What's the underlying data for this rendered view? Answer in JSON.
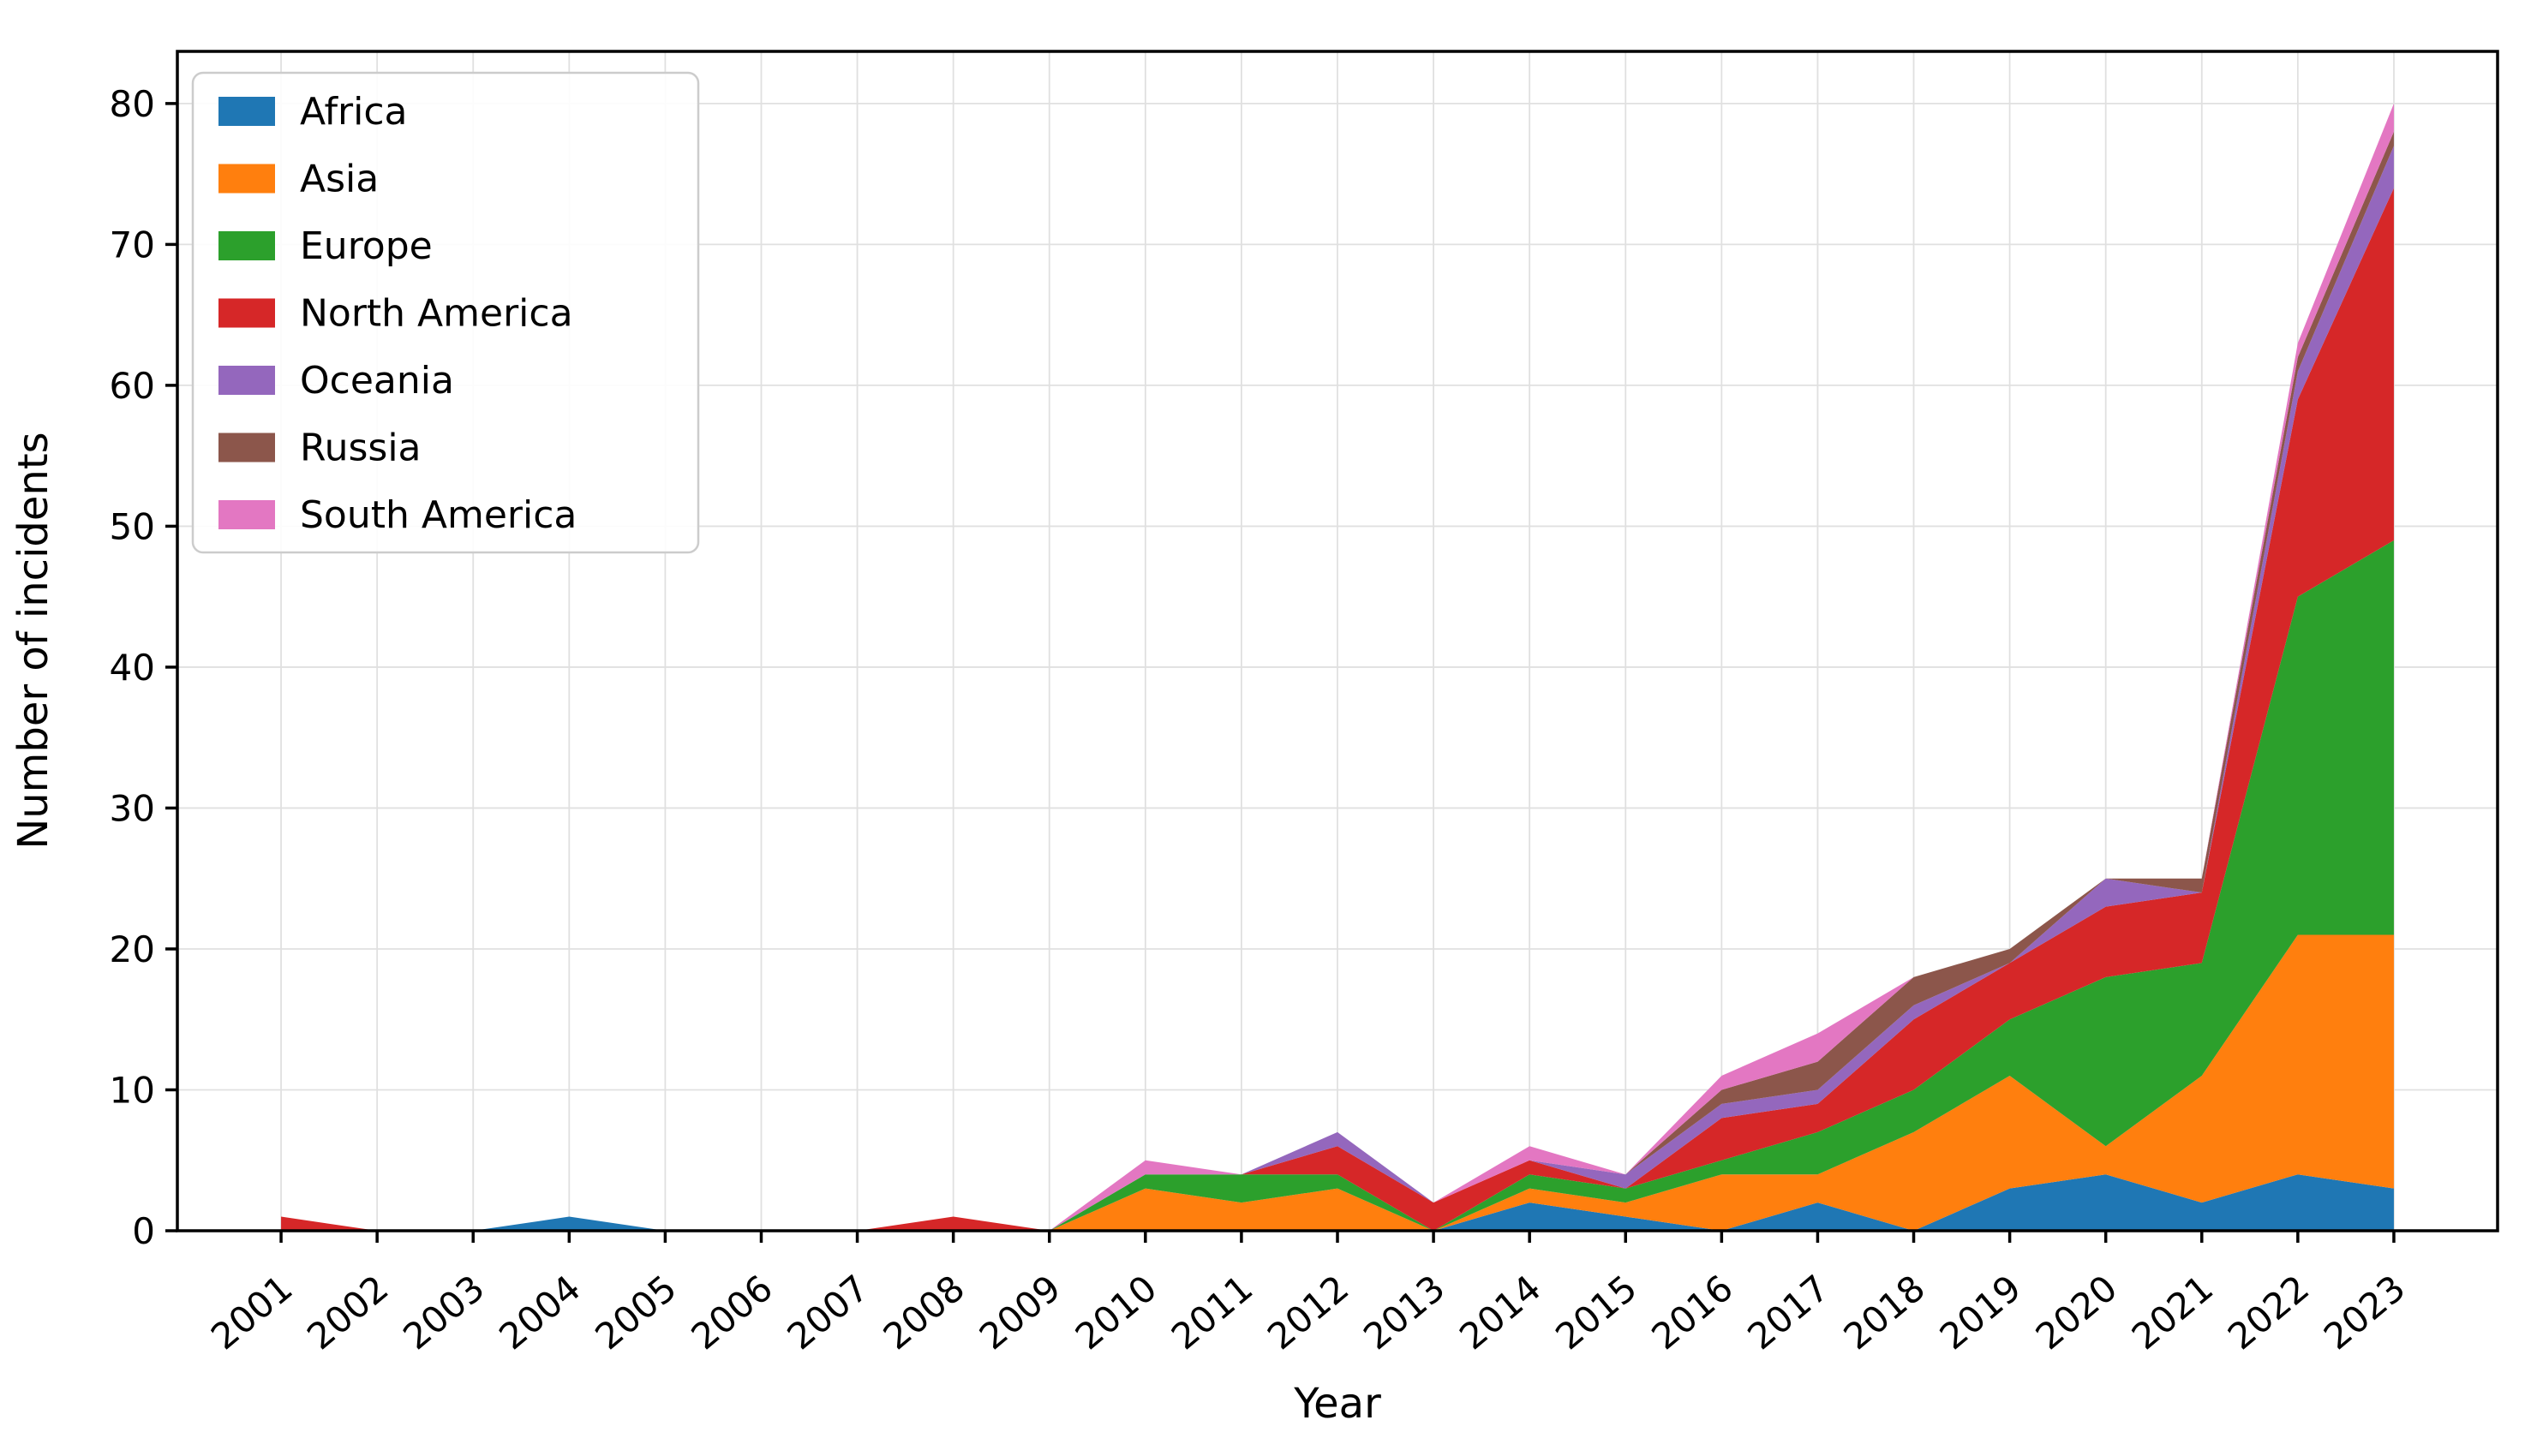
{
  "chart_data": {
    "type": "area",
    "stacked": true,
    "title": "",
    "xlabel": "Year",
    "ylabel": "Number of incidents",
    "x": [
      2001,
      2002,
      2003,
      2004,
      2005,
      2006,
      2007,
      2008,
      2009,
      2010,
      2011,
      2012,
      2013,
      2014,
      2015,
      2016,
      2017,
      2018,
      2019,
      2020,
      2021,
      2022,
      2023
    ],
    "x_tick_labels": [
      "2001",
      "2002",
      "2003",
      "2004",
      "2005",
      "2006",
      "2007",
      "2008",
      "2009",
      "2010",
      "2011",
      "2012",
      "2013",
      "2014",
      "2015",
      "2016",
      "2017",
      "2018",
      "2019",
      "2020",
      "2021",
      "2022",
      "2023"
    ],
    "y_tick_labels": [
      "0",
      "10",
      "20",
      "30",
      "40",
      "50",
      "60",
      "70",
      "80"
    ],
    "y_ticks": [
      0,
      10,
      20,
      30,
      40,
      50,
      60,
      70,
      80
    ],
    "xlim": [
      1999.92,
      2024.08
    ],
    "ylim": [
      0,
      83.7
    ],
    "grid": true,
    "legend_position": "upper left",
    "series": [
      {
        "name": "Africa",
        "color": "#1f77b4",
        "values": [
          0,
          0,
          0,
          1,
          0,
          0,
          0,
          0,
          0,
          0,
          0,
          0,
          0,
          2,
          1,
          0,
          2,
          0,
          3,
          4,
          2,
          4,
          3
        ]
      },
      {
        "name": "Asia",
        "color": "#ff7f0e",
        "values": [
          0,
          0,
          0,
          0,
          0,
          0,
          0,
          0,
          0,
          3,
          2,
          3,
          0,
          1,
          1,
          4,
          2,
          7,
          8,
          2,
          9,
          17,
          18
        ]
      },
      {
        "name": "Europe",
        "color": "#2ca02c",
        "values": [
          0,
          0,
          0,
          0,
          0,
          0,
          0,
          0,
          0,
          1,
          2,
          1,
          0,
          1,
          1,
          1,
          3,
          3,
          4,
          12,
          8,
          24,
          28
        ]
      },
      {
        "name": "North America",
        "color": "#d62728",
        "values": [
          1,
          0,
          0,
          0,
          0,
          0,
          0,
          1,
          0,
          0,
          0,
          2,
          2,
          1,
          0,
          3,
          2,
          5,
          4,
          5,
          5,
          14,
          25
        ]
      },
      {
        "name": "Oceania",
        "color": "#9467bd",
        "values": [
          0,
          0,
          0,
          0,
          0,
          0,
          0,
          0,
          0,
          0,
          0,
          1,
          0,
          0,
          1,
          1,
          1,
          1,
          0,
          2,
          0,
          2,
          3
        ]
      },
      {
        "name": "Russia",
        "color": "#8c564b",
        "values": [
          0,
          0,
          0,
          0,
          0,
          0,
          0,
          0,
          0,
          0,
          0,
          0,
          0,
          0,
          0,
          1,
          2,
          2,
          1,
          0,
          1,
          1,
          1
        ]
      },
      {
        "name": "South America",
        "color": "#e377c2",
        "values": [
          0,
          0,
          0,
          0,
          0,
          0,
          0,
          0,
          0,
          1,
          0,
          0,
          0,
          1,
          0,
          1,
          2,
          0,
          0,
          0,
          0,
          1,
          2
        ]
      }
    ]
  },
  "labels": {
    "xlabel": "Year",
    "ylabel": "Number of incidents"
  },
  "colors": {
    "background": "#ffffff",
    "grid": "#e0e0e0",
    "spine": "#000000"
  }
}
